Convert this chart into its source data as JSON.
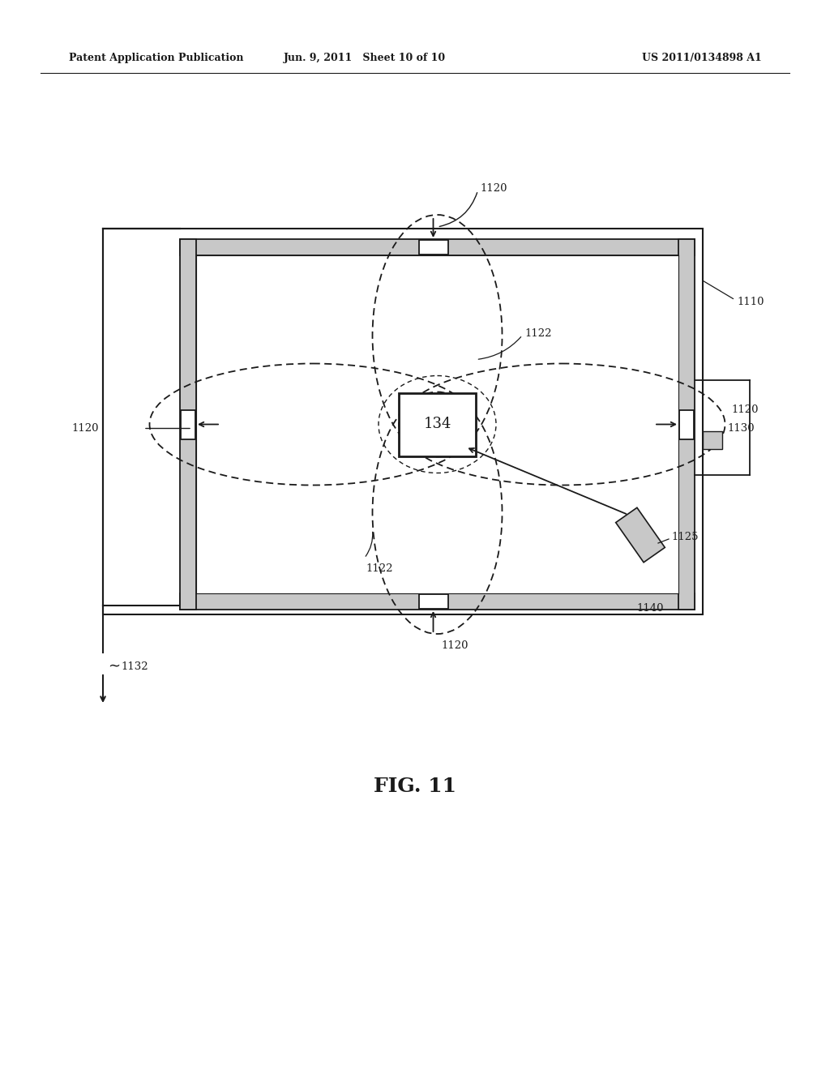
{
  "title_left": "Patent Application Publication",
  "title_center": "Jun. 9, 2011   Sheet 10 of 10",
  "title_right": "US 2011/0134898 A1",
  "fig_label": "FIG. 11",
  "background_color": "#ffffff",
  "light_gray": "#c8c8c8",
  "wall_gray": "#c0c0c0"
}
